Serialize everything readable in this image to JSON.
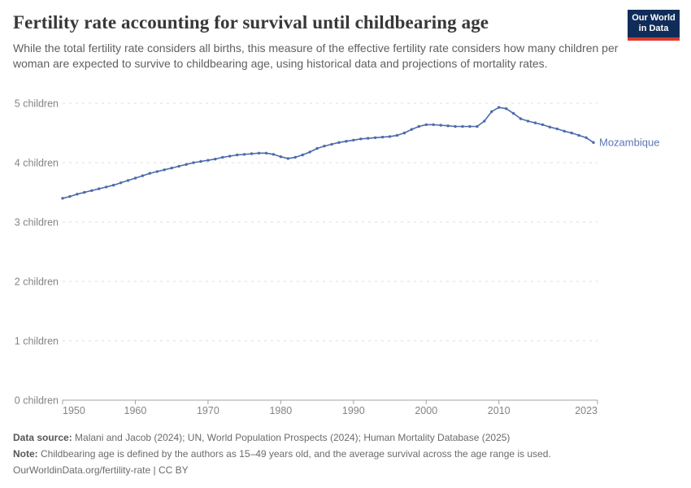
{
  "header": {
    "title": "Fertility rate accounting for survival until childbearing age",
    "subtitle": "While the total fertility rate considers all births, this measure of the effective fertility rate considers how many children per woman are expected to survive to childbearing age, using historical data and projections of mortality rates.",
    "logo": {
      "line1": "Our World",
      "line2": "in Data"
    }
  },
  "colors": {
    "line": "#4d6bab",
    "series_label": "#5b76b5",
    "grid": "#dddddd",
    "axis": "#a3a3a3",
    "tick_label": "#848484",
    "title": "#383838",
    "subtitle": "#5f5f5f",
    "logo_bg": "#102d59",
    "logo_red": "#d93a2b",
    "footer_text": "#6b6b6b"
  },
  "chart_data": {
    "type": "line",
    "title": "Fertility rate accounting for survival until childbearing age",
    "xlabel": "",
    "ylabel": "",
    "xlim": [
      1950,
      2023
    ],
    "ylim": [
      0,
      5
    ],
    "x_ticks": [
      1950,
      1960,
      1970,
      1980,
      1990,
      2000,
      2010,
      2023
    ],
    "y_ticks": [
      0,
      1,
      2,
      3,
      4,
      5
    ],
    "y_tick_suffix": " children",
    "grid": "horizontal-dashed",
    "legend_position": "end-of-line-label",
    "series": [
      {
        "name": "Mozambique",
        "x": [
          1950,
          1951,
          1952,
          1953,
          1954,
          1955,
          1956,
          1957,
          1958,
          1959,
          1960,
          1961,
          1962,
          1963,
          1964,
          1965,
          1966,
          1967,
          1968,
          1969,
          1970,
          1971,
          1972,
          1973,
          1974,
          1975,
          1976,
          1977,
          1978,
          1979,
          1980,
          1981,
          1982,
          1983,
          1984,
          1985,
          1986,
          1987,
          1988,
          1989,
          1990,
          1991,
          1992,
          1993,
          1994,
          1995,
          1996,
          1997,
          1998,
          1999,
          2000,
          2001,
          2002,
          2003,
          2004,
          2005,
          2006,
          2007,
          2008,
          2009,
          2010,
          2011,
          2012,
          2013,
          2014,
          2015,
          2016,
          2017,
          2018,
          2019,
          2020,
          2021,
          2022,
          2023
        ],
        "values": [
          3.4,
          3.43,
          3.47,
          3.5,
          3.53,
          3.56,
          3.59,
          3.62,
          3.66,
          3.7,
          3.74,
          3.78,
          3.82,
          3.85,
          3.88,
          3.91,
          3.94,
          3.97,
          4.0,
          4.02,
          4.04,
          4.06,
          4.09,
          4.11,
          4.13,
          4.14,
          4.15,
          4.16,
          4.16,
          4.14,
          4.1,
          4.07,
          4.09,
          4.13,
          4.18,
          4.24,
          4.28,
          4.31,
          4.34,
          4.36,
          4.38,
          4.4,
          4.41,
          4.42,
          4.43,
          4.44,
          4.46,
          4.5,
          4.56,
          4.61,
          4.64,
          4.64,
          4.63,
          4.62,
          4.61,
          4.61,
          4.61,
          4.61,
          4.7,
          4.86,
          4.93,
          4.91,
          4.83,
          4.74,
          4.7,
          4.67,
          4.64,
          4.6,
          4.57,
          4.53,
          4.5,
          4.46,
          4.42,
          4.34
        ]
      }
    ]
  },
  "footer": {
    "data_source_label": "Data source:",
    "data_source_text": " Malani and Jacob (2024); UN, World Population Prospects (2024); Human Mortality Database (2025)",
    "note_label": "Note:",
    "note_text": " Childbearing age is defined by the authors as 15–49 years old, and the average survival across the age range is used.",
    "attribution": "OurWorldinData.org/fertility-rate | CC BY"
  }
}
